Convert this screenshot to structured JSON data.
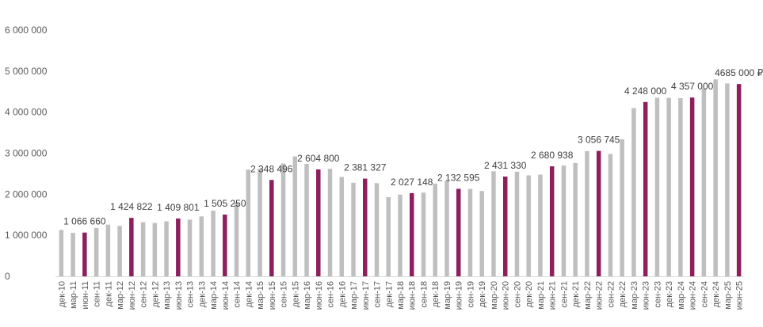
{
  "chart_data": {
    "type": "bar",
    "title": "",
    "xlabel": "",
    "ylabel": "",
    "ylim": [
      0,
      6000000
    ],
    "yticks": [
      0,
      1000000,
      2000000,
      3000000,
      4000000,
      5000000,
      6000000
    ],
    "ytick_labels": [
      "0",
      "1 000 000",
      "2 000 000",
      "3 000 000",
      "4 000 000",
      "5 000 000",
      "6 000 000"
    ],
    "grid": false,
    "legend": "none",
    "colors": {
      "regular": "#bfbfbf",
      "highlight": "#8e1f5f"
    },
    "categories": [
      "дек-10",
      "мар-11",
      "июн-11",
      "сен-11",
      "дек-11",
      "мар-12",
      "июн-12",
      "сен-12",
      "дек-12",
      "мар-13",
      "июн-13",
      "сен-13",
      "дек-13",
      "мар-14",
      "июн-14",
      "сен-14",
      "дек-14",
      "мар-15",
      "июн-15",
      "сен-15",
      "дек-15",
      "мар-16",
      "июн-16",
      "сен-16",
      "дек-16",
      "мар-17",
      "июн-17",
      "сен-17",
      "дек-17",
      "мар-18",
      "июн-18",
      "сен-18",
      "дек-18",
      "мар-19",
      "июн-19",
      "сен-19",
      "дек-19",
      "мар-20",
      "июн-20",
      "сен-20",
      "дек-20",
      "мар-21",
      "июн-21",
      "сен-21",
      "дек-21",
      "мар-22",
      "июн-22",
      "сен-22",
      "дек-22",
      "мар-23",
      "июн-23",
      "сен-23",
      "дек-23",
      "мар-24",
      "июн-24",
      "сен-24",
      "дек-24",
      "мар-25",
      "июн-25"
    ],
    "values": [
      1130000,
      1060000,
      1066660,
      1180000,
      1260000,
      1230000,
      1424822,
      1320000,
      1300000,
      1340000,
      1409801,
      1380000,
      1460000,
      1600000,
      1505250,
      1800000,
      2600000,
      2620000,
      2348496,
      2750000,
      2920000,
      2740000,
      2604800,
      2620000,
      2420000,
      2280000,
      2381327,
      2270000,
      1930000,
      1990000,
      2027148,
      2040000,
      2260000,
      2320000,
      2132595,
      2130000,
      2080000,
      2560000,
      2431330,
      2550000,
      2460000,
      2480000,
      2680938,
      2700000,
      2760000,
      3050000,
      3056745,
      2980000,
      3340000,
      4100000,
      4248000,
      4350000,
      4350000,
      4340000,
      4357000,
      4580000,
      4800000,
      4700000,
      4685000
    ],
    "highlight": [
      false,
      false,
      true,
      false,
      false,
      false,
      true,
      false,
      false,
      false,
      true,
      false,
      false,
      false,
      true,
      false,
      false,
      false,
      true,
      false,
      false,
      false,
      true,
      false,
      false,
      false,
      true,
      false,
      false,
      false,
      true,
      false,
      false,
      false,
      true,
      false,
      false,
      false,
      true,
      false,
      false,
      false,
      true,
      false,
      false,
      false,
      true,
      false,
      false,
      false,
      true,
      false,
      false,
      false,
      true,
      false,
      false,
      false,
      true
    ],
    "data_labels": [
      {
        "index": 2,
        "text": "1 066 660"
      },
      {
        "index": 6,
        "text": "1 424 822"
      },
      {
        "index": 10,
        "text": "1 409 801"
      },
      {
        "index": 14,
        "text": "1 505 250"
      },
      {
        "index": 18,
        "text": "2 348 496"
      },
      {
        "index": 22,
        "text": "2 604 800"
      },
      {
        "index": 26,
        "text": "2 381 327"
      },
      {
        "index": 30,
        "text": "2 027 148"
      },
      {
        "index": 34,
        "text": "2 132 595"
      },
      {
        "index": 38,
        "text": "2 431 330"
      },
      {
        "index": 42,
        "text": "2 680 938"
      },
      {
        "index": 46,
        "text": "3 056 745"
      },
      {
        "index": 50,
        "text": "4 248 000"
      },
      {
        "index": 54,
        "text": "4 357 000"
      },
      {
        "index": 58,
        "text": "4685 000 ₽"
      }
    ]
  }
}
